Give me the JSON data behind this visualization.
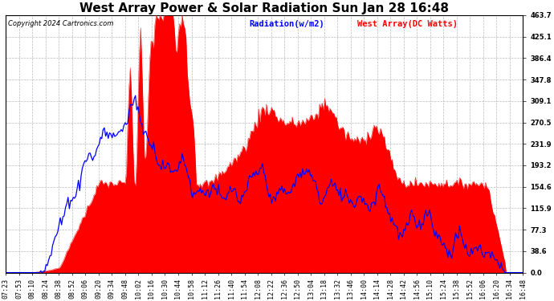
{
  "title": "West Array Power & Solar Radiation Sun Jan 28 16:48",
  "copyright": "Copyright 2024 Cartronics.com",
  "legend_radiation": "Radiation(w/m2)",
  "legend_west": "West Array(DC Watts)",
  "legend_radiation_color": "blue",
  "legend_west_color": "red",
  "ymin": 0.0,
  "ymax": 463.7,
  "yticks": [
    0.0,
    38.6,
    77.3,
    115.9,
    154.6,
    193.2,
    231.9,
    270.5,
    309.1,
    347.8,
    386.4,
    425.1,
    463.7
  ],
  "background_color": "#ffffff",
  "grid_color": "#aaaaaa",
  "fill_color": "red",
  "line_color": "blue",
  "xtick_labels": [
    "07:23",
    "07:53",
    "08:10",
    "08:24",
    "08:38",
    "08:52",
    "09:06",
    "09:20",
    "09:34",
    "09:48",
    "10:02",
    "10:16",
    "10:30",
    "10:44",
    "10:58",
    "11:12",
    "11:26",
    "11:40",
    "11:54",
    "12:08",
    "12:22",
    "12:36",
    "12:50",
    "13:04",
    "13:18",
    "13:32",
    "13:46",
    "14:00",
    "14:14",
    "14:28",
    "14:42",
    "14:56",
    "15:10",
    "15:24",
    "15:38",
    "15:52",
    "16:06",
    "16:20",
    "16:34",
    "16:48"
  ],
  "title_fontsize": 11,
  "tick_fontsize": 6,
  "copyright_fontsize": 6,
  "legend_fontsize": 7.5
}
